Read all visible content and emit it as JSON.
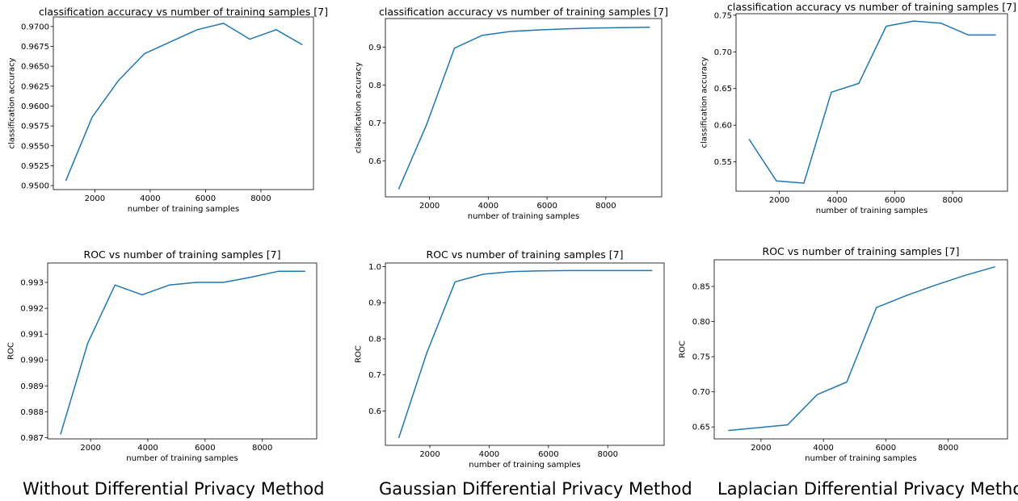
{
  "captions": [
    "Without Differential Privacy Method",
    "Gaussian Differential Privacy Method",
    "Laplacian Differential Privacy Method"
  ],
  "colors": {
    "line": "#1f77b4",
    "axis": "#000000"
  },
  "chart_data": [
    {
      "type": "line",
      "title": "classification accuracy vs number of training samples [7]",
      "xlabel": "number of training samples",
      "ylabel": "classification accuracy",
      "xlim": [
        500,
        9900
      ],
      "ylim": [
        0.9495,
        0.9712
      ],
      "xticks": [
        2000,
        4000,
        6000,
        8000
      ],
      "yticks": [
        0.95,
        0.9525,
        0.955,
        0.9575,
        0.96,
        0.9625,
        0.965,
        0.9675,
        0.97
      ],
      "ytick_labels": [
        "0.9500",
        "0.9525",
        "0.9550",
        "0.9575",
        "0.9600",
        "0.9625",
        "0.9650",
        "0.9675",
        "0.9700"
      ],
      "x": [
        950,
        1900,
        2850,
        3800,
        4750,
        5700,
        6650,
        7600,
        8550,
        9500
      ],
      "y": [
        0.9506,
        0.9586,
        0.9632,
        0.9666,
        0.9681,
        0.9696,
        0.9704,
        0.9684,
        0.9696,
        0.9677
      ]
    },
    {
      "type": "line",
      "title": "classification accuracy vs number of training samples [7]",
      "xlabel": "number of training samples",
      "ylabel": "classification accuracy",
      "xlim": [
        500,
        9900
      ],
      "ylim": [
        0.505,
        0.975
      ],
      "xticks": [
        2000,
        4000,
        6000,
        8000
      ],
      "yticks": [
        0.6,
        0.7,
        0.8,
        0.9
      ],
      "ytick_labels": [
        "0.6",
        "0.7",
        "0.8",
        "0.9"
      ],
      "x": [
        950,
        1900,
        2850,
        3800,
        4750,
        5700,
        6650,
        7600,
        8550,
        9500
      ],
      "y": [
        0.525,
        0.695,
        0.897,
        0.931,
        0.941,
        0.945,
        0.948,
        0.95,
        0.951,
        0.952
      ]
    },
    {
      "type": "line",
      "title": "classification accuracy vs number of training samples [7]",
      "xlabel": "number of training samples",
      "ylabel": "classification accuracy",
      "xlim": [
        500,
        9900
      ],
      "ylim": [
        0.51,
        0.752
      ],
      "xticks": [
        2000,
        4000,
        6000,
        8000
      ],
      "yticks": [
        0.55,
        0.6,
        0.65,
        0.7,
        0.75
      ],
      "ytick_labels": [
        "0.55",
        "0.60",
        "0.65",
        "0.70",
        "0.75"
      ],
      "x": [
        950,
        1900,
        2850,
        3800,
        4750,
        5700,
        6650,
        7600,
        8550,
        9500
      ],
      "y": [
        0.581,
        0.524,
        0.521,
        0.645,
        0.657,
        0.735,
        0.742,
        0.739,
        0.723,
        0.723
      ]
    },
    {
      "type": "line",
      "title": "ROC vs number of training samples [7]",
      "xlabel": "number of training samples",
      "ylabel": "ROC",
      "xlim": [
        500,
        9900
      ],
      "ylim": [
        0.98695,
        0.99375
      ],
      "xticks": [
        2000,
        4000,
        6000,
        8000
      ],
      "yticks": [
        0.987,
        0.988,
        0.989,
        0.99,
        0.991,
        0.992,
        0.993
      ],
      "ytick_labels": [
        "0.987",
        "0.988",
        "0.989",
        "0.990",
        "0.991",
        "0.992",
        "0.993"
      ],
      "x": [
        950,
        1900,
        2850,
        3800,
        4750,
        5700,
        6650,
        7600,
        8550,
        9500
      ],
      "y": [
        0.98712,
        0.99065,
        0.9929,
        0.99252,
        0.9929,
        0.993,
        0.993,
        0.9932,
        0.99343,
        0.99343
      ]
    },
    {
      "type": "line",
      "title": "ROC vs number of training samples [7]",
      "xlabel": "number of training samples",
      "ylabel": "ROC",
      "xlim": [
        500,
        9900
      ],
      "ylim": [
        0.505,
        1.01
      ],
      "xticks": [
        2000,
        4000,
        6000,
        8000
      ],
      "yticks": [
        0.6,
        0.7,
        0.8,
        0.9,
        1.0
      ],
      "ytick_labels": [
        "0.6",
        "0.7",
        "0.8",
        "0.9",
        "1.0"
      ],
      "x": [
        950,
        1900,
        2850,
        3800,
        4750,
        5700,
        6650,
        7600,
        8550,
        9500
      ],
      "y": [
        0.525,
        0.762,
        0.958,
        0.979,
        0.986,
        0.988,
        0.989,
        0.989,
        0.989,
        0.989
      ]
    },
    {
      "type": "line",
      "title": "ROC vs number of training samples [7]",
      "xlabel": "number of training samples",
      "ylabel": "ROC",
      "xlim": [
        500,
        9900
      ],
      "ylim": [
        0.633,
        0.888
      ],
      "xticks": [
        2000,
        4000,
        6000,
        8000
      ],
      "yticks": [
        0.65,
        0.7,
        0.75,
        0.8,
        0.85
      ],
      "ytick_labels": [
        "0.65",
        "0.70",
        "0.75",
        "0.80",
        "0.85"
      ],
      "x": [
        950,
        1900,
        2850,
        3800,
        4750,
        5700,
        6650,
        7600,
        8550,
        9500
      ],
      "y": [
        0.645,
        0.649,
        0.653,
        0.696,
        0.714,
        0.82,
        0.837,
        0.852,
        0.866,
        0.878
      ]
    }
  ]
}
